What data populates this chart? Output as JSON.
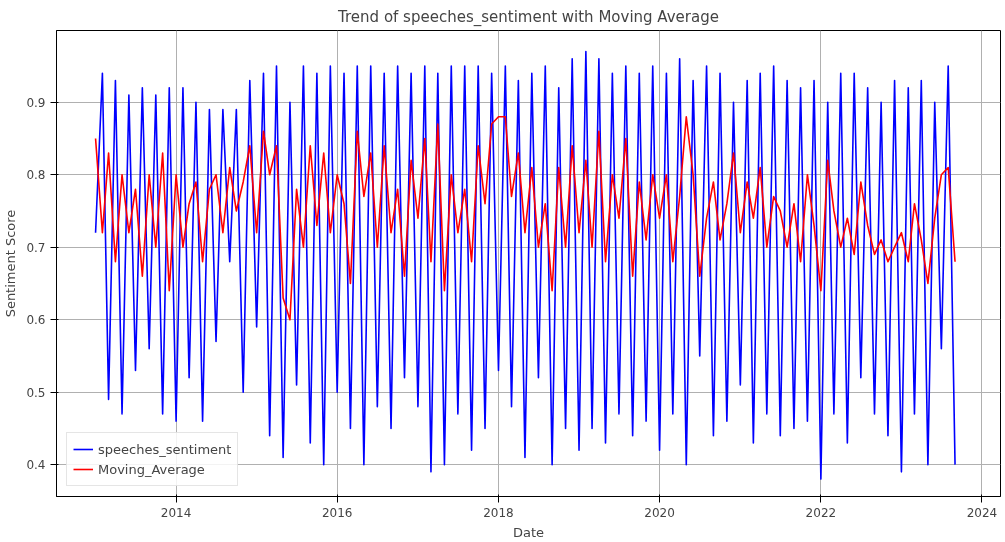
{
  "chart_data": {
    "type": "line",
    "title": "Trend of speeches_sentiment with Moving Average",
    "xlabel": "Date",
    "ylabel": "Sentiment Score",
    "x": [
      "2013-01",
      "2013-02",
      "2013-03",
      "2013-04",
      "2013-05",
      "2013-06",
      "2013-07",
      "2013-08",
      "2013-09",
      "2013-10",
      "2013-11",
      "2013-12",
      "2014-01",
      "2014-02",
      "2014-03",
      "2014-04",
      "2014-05",
      "2014-06",
      "2014-07",
      "2014-08",
      "2014-09",
      "2014-10",
      "2014-11",
      "2014-12",
      "2015-01",
      "2015-02",
      "2015-03",
      "2015-04",
      "2015-05",
      "2015-06",
      "2015-07",
      "2015-08",
      "2015-09",
      "2015-10",
      "2015-11",
      "2015-12",
      "2016-01",
      "2016-02",
      "2016-03",
      "2016-04",
      "2016-05",
      "2016-06",
      "2016-07",
      "2016-08",
      "2016-09",
      "2016-10",
      "2016-11",
      "2016-12",
      "2017-01",
      "2017-02",
      "2017-03",
      "2017-04",
      "2017-05",
      "2017-06",
      "2017-07",
      "2017-08",
      "2017-09",
      "2017-10",
      "2017-11",
      "2017-12",
      "2018-01",
      "2018-02",
      "2018-03",
      "2018-04",
      "2018-05",
      "2018-06",
      "2018-07",
      "2018-08",
      "2018-09",
      "2018-10",
      "2018-11",
      "2018-12",
      "2019-01",
      "2019-02",
      "2019-03",
      "2019-04",
      "2019-05",
      "2019-06",
      "2019-07",
      "2019-08",
      "2019-09",
      "2019-10",
      "2019-11",
      "2019-12",
      "2020-01",
      "2020-02",
      "2020-03",
      "2020-04",
      "2020-05",
      "2020-06",
      "2020-07",
      "2020-08",
      "2020-09",
      "2020-10",
      "2020-11",
      "2020-12",
      "2021-01",
      "2021-02",
      "2021-03",
      "2021-04",
      "2021-05",
      "2021-06",
      "2021-07",
      "2021-08",
      "2021-09",
      "2021-10",
      "2021-11",
      "2021-12",
      "2022-01",
      "2022-02",
      "2022-03",
      "2022-04",
      "2022-05",
      "2022-06",
      "2022-07",
      "2022-08",
      "2022-09",
      "2022-10",
      "2022-11",
      "2022-12",
      "2023-01",
      "2023-02",
      "2023-03",
      "2023-04",
      "2023-05",
      "2023-06",
      "2023-07",
      "2023-08",
      "2023-09"
    ],
    "series": [
      {
        "name": "speeches_sentiment",
        "color": "#0000ff",
        "values": [
          0.72,
          0.94,
          0.49,
          0.93,
          0.47,
          0.91,
          0.53,
          0.92,
          0.56,
          0.91,
          0.47,
          0.92,
          0.46,
          0.92,
          0.52,
          0.9,
          0.46,
          0.89,
          0.57,
          0.89,
          0.68,
          0.89,
          0.5,
          0.93,
          0.59,
          0.94,
          0.44,
          0.95,
          0.41,
          0.9,
          0.51,
          0.95,
          0.43,
          0.94,
          0.4,
          0.95,
          0.5,
          0.94,
          0.45,
          0.95,
          0.4,
          0.95,
          0.48,
          0.94,
          0.45,
          0.95,
          0.52,
          0.94,
          0.48,
          0.95,
          0.39,
          0.94,
          0.4,
          0.95,
          0.47,
          0.95,
          0.42,
          0.95,
          0.45,
          0.94,
          0.53,
          0.95,
          0.48,
          0.93,
          0.41,
          0.94,
          0.52,
          0.95,
          0.4,
          0.92,
          0.45,
          0.96,
          0.42,
          0.97,
          0.45,
          0.96,
          0.43,
          0.94,
          0.47,
          0.95,
          0.44,
          0.94,
          0.46,
          0.95,
          0.42,
          0.94,
          0.47,
          0.96,
          0.4,
          0.93,
          0.55,
          0.95,
          0.44,
          0.94,
          0.46,
          0.9,
          0.51,
          0.93,
          0.43,
          0.94,
          0.47,
          0.95,
          0.44,
          0.93,
          0.45,
          0.92,
          0.46,
          0.93,
          0.38,
          0.9,
          0.47,
          0.94,
          0.43,
          0.94,
          0.52,
          0.92,
          0.47,
          0.9,
          0.44,
          0.93,
          0.39,
          0.92,
          0.47,
          0.93,
          0.4,
          0.9,
          0.56,
          0.95,
          0.4
        ]
      },
      {
        "name": "Moving_Average",
        "color": "#ff0000",
        "values": [
          0.85,
          0.72,
          0.83,
          0.68,
          0.8,
          0.72,
          0.78,
          0.66,
          0.8,
          0.7,
          0.83,
          0.64,
          0.8,
          0.7,
          0.76,
          0.79,
          0.68,
          0.78,
          0.8,
          0.72,
          0.81,
          0.75,
          0.79,
          0.84,
          0.72,
          0.86,
          0.8,
          0.84,
          0.63,
          0.6,
          0.78,
          0.7,
          0.84,
          0.73,
          0.83,
          0.72,
          0.8,
          0.76,
          0.65,
          0.86,
          0.77,
          0.83,
          0.7,
          0.84,
          0.72,
          0.78,
          0.66,
          0.82,
          0.74,
          0.85,
          0.68,
          0.87,
          0.64,
          0.8,
          0.72,
          0.78,
          0.68,
          0.84,
          0.76,
          0.87,
          0.88,
          0.88,
          0.77,
          0.83,
          0.72,
          0.81,
          0.7,
          0.76,
          0.64,
          0.81,
          0.7,
          0.84,
          0.72,
          0.82,
          0.7,
          0.86,
          0.68,
          0.8,
          0.74,
          0.85,
          0.66,
          0.79,
          0.71,
          0.8,
          0.74,
          0.8,
          0.68,
          0.77,
          0.88,
          0.8,
          0.66,
          0.74,
          0.79,
          0.71,
          0.76,
          0.83,
          0.72,
          0.79,
          0.74,
          0.81,
          0.7,
          0.77,
          0.75,
          0.7,
          0.76,
          0.68,
          0.8,
          0.73,
          0.64,
          0.82,
          0.75,
          0.7,
          0.74,
          0.69,
          0.79,
          0.73,
          0.69,
          0.71,
          0.68,
          0.7,
          0.72,
          0.68,
          0.76,
          0.71,
          0.65,
          0.74,
          0.8,
          0.81,
          0.68
        ]
      }
    ],
    "xlim": [
      "2012-07-08",
      "2024-03-25"
    ],
    "xticks": [
      "2014",
      "2016",
      "2018",
      "2020",
      "2022",
      "2024"
    ],
    "ylim": [
      0.356,
      0.999
    ],
    "yticks": [
      0.4,
      0.5,
      0.6,
      0.7,
      0.8,
      0.9
    ],
    "grid": true,
    "legend": "bottom left",
    "line_style": "solid"
  }
}
